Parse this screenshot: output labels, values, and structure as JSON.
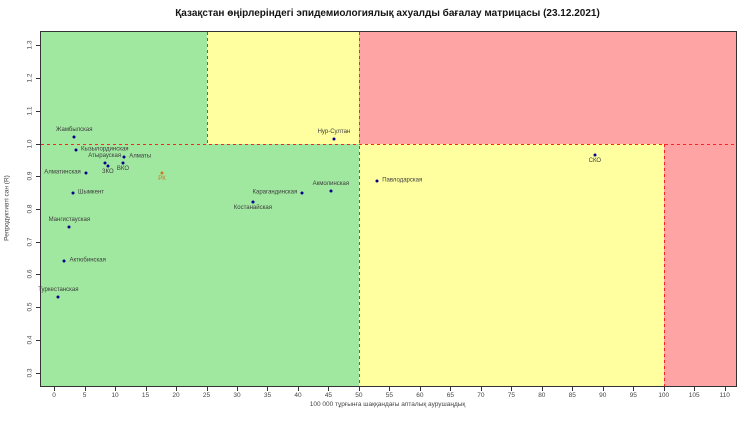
{
  "title": "Қазақстан өңірлеріндегі эпидемиологиялық ахуалды бағалау матрицасы  (23.12.2021)",
  "chart_data": {
    "type": "scatter",
    "title": "Қазақстан өңірлеріндегі эпидемиологиялық ахуалды бағалау матрицасы  (23.12.2021)",
    "xlabel": "100 000 тұрғынға шаққандағы апталық аурушаңдық",
    "ylabel": "Репродуктивті сан (R)",
    "xlim": [
      -2.15,
      111.85
    ],
    "ylim": [
      0.259,
      1.341
    ],
    "x_ticks": [
      0,
      5,
      10,
      15,
      20,
      25,
      30,
      35,
      40,
      45,
      50,
      55,
      60,
      65,
      70,
      75,
      80,
      85,
      90,
      95,
      100,
      105,
      110
    ],
    "y_ticks": [
      0.3,
      0.4,
      0.5,
      0.6,
      0.7,
      0.8,
      0.9,
      1.0,
      1.1,
      1.2,
      1.3
    ],
    "grid": false,
    "legend": "none",
    "thresholds": {
      "y_line": 1.0,
      "x_lines_above": [
        25,
        50
      ],
      "x_lines_below": [
        50,
        100
      ]
    },
    "zone_colors": {
      "green": "#a0e7a0",
      "yellow": "#ffffa0",
      "red": "#ffa4a4"
    },
    "line_color": "#ff2222",
    "point_color": "#00008b",
    "highlight_color": "#c87820",
    "points": [
      {
        "label": "Жамбылская",
        "x": 3.3,
        "y": 1.02,
        "pos": "above"
      },
      {
        "label": "Кызылординская",
        "x": 3.6,
        "y": 0.98,
        "pos": "right"
      },
      {
        "label": "Атырауская",
        "x": 8.3,
        "y": 0.94,
        "pos": "above"
      },
      {
        "label": "ЗКО",
        "x": 8.8,
        "y": 0.93,
        "pos": "below"
      },
      {
        "label": "Алматы",
        "x": 11.5,
        "y": 0.96,
        "pos": "right"
      },
      {
        "label": "ВКО",
        "x": 11.3,
        "y": 0.94,
        "pos": "below"
      },
      {
        "label": "Алматинская",
        "x": 5.2,
        "y": 0.91,
        "pos": "left"
      },
      {
        "label": "РК",
        "x": 17.7,
        "y": 0.91,
        "pos": "below",
        "highlight": true
      },
      {
        "label": "Шымкент",
        "x": 3.1,
        "y": 0.85,
        "pos": "right"
      },
      {
        "label": "Мангистауская",
        "x": 2.5,
        "y": 0.745,
        "pos": "above"
      },
      {
        "label": "Актюбинская",
        "x": 1.7,
        "y": 0.64,
        "pos": "right"
      },
      {
        "label": "Туркестанская",
        "x": 0.7,
        "y": 0.53,
        "pos": "above"
      },
      {
        "label": "Нур-Султан",
        "x": 45.9,
        "y": 1.015,
        "pos": "above"
      },
      {
        "label": "Акмолинская",
        "x": 45.4,
        "y": 0.855,
        "pos": "above"
      },
      {
        "label": "Карагандинская",
        "x": 40.7,
        "y": 0.85,
        "pos": "left"
      },
      {
        "label": "Костанайская",
        "x": 32.6,
        "y": 0.82,
        "pos": "below"
      },
      {
        "label": "Павлодарская",
        "x": 53.0,
        "y": 0.885,
        "pos": "right"
      },
      {
        "label": "СКО",
        "x": 88.7,
        "y": 0.965,
        "pos": "below"
      }
    ]
  }
}
